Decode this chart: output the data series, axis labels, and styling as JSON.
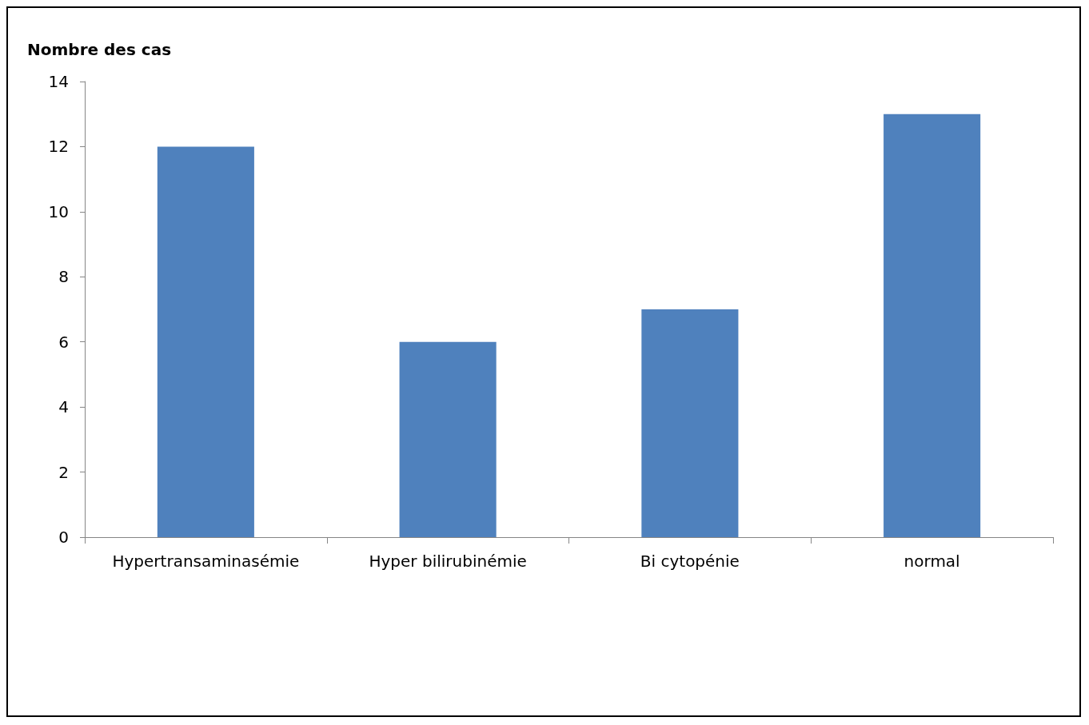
{
  "chart_data": {
    "type": "bar",
    "ylabel": "Nombre des cas",
    "categories": [
      "Hypertransaminasémie",
      "Hyper bilirubinémie",
      "Bi cytopénie",
      "normal"
    ],
    "values": [
      12,
      6,
      7,
      13
    ],
    "color": "#4f81bd",
    "ylim": [
      0,
      14
    ],
    "yticks": [
      0,
      2,
      4,
      6,
      8,
      10,
      12,
      14
    ],
    "grid": false
  }
}
